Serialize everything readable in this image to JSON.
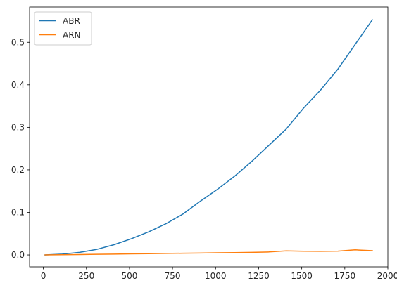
{
  "chart_data": {
    "type": "line",
    "title": "",
    "xlabel": "",
    "ylabel": "",
    "xlim": [
      -80,
      2000
    ],
    "ylim": [
      -0.028,
      0.583
    ],
    "xticks": [
      0,
      250,
      500,
      750,
      1000,
      1250,
      1500,
      1750,
      2000
    ],
    "xtick_labels": [
      "0",
      "250",
      "500",
      "750",
      "1000",
      "1250",
      "1500",
      "1750",
      "2000"
    ],
    "yticks": [
      0.0,
      0.1,
      0.2,
      0.3,
      0.4,
      0.5
    ],
    "ytick_labels": [
      "0.0",
      "0.1",
      "0.2",
      "0.3",
      "0.4",
      "0.5"
    ],
    "grid": false,
    "legend_position": "top-left",
    "x": [
      10,
      110,
      210,
      310,
      410,
      510,
      610,
      710,
      810,
      910,
      1010,
      1110,
      1210,
      1310,
      1410,
      1510,
      1610,
      1710,
      1810,
      1910
    ],
    "series": [
      {
        "name": "ABR",
        "color": "#1f77b4",
        "values": [
          0.0,
          0.002,
          0.006,
          0.013,
          0.024,
          0.038,
          0.054,
          0.073,
          0.096,
          0.126,
          0.154,
          0.185,
          0.22,
          0.258,
          0.296,
          0.345,
          0.388,
          0.437,
          0.495,
          0.553
        ]
      },
      {
        "name": "ARN",
        "color": "#ff7f0e",
        "values": [
          0.0,
          0.0005,
          0.001,
          0.0015,
          0.002,
          0.0025,
          0.003,
          0.0035,
          0.004,
          0.0045,
          0.005,
          0.0055,
          0.006,
          0.007,
          0.0095,
          0.0088,
          0.0085,
          0.009,
          0.012,
          0.01
        ]
      }
    ]
  }
}
